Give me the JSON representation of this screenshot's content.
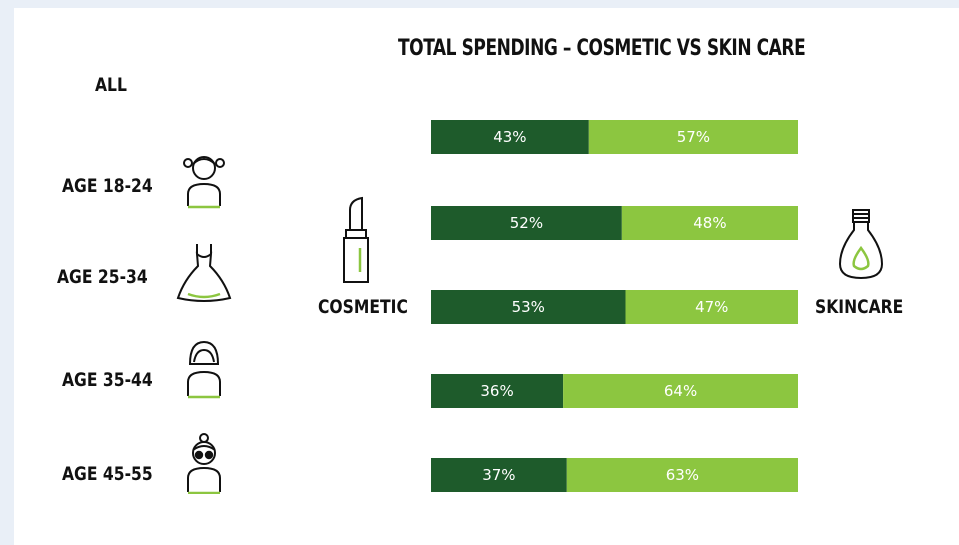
{
  "chart_data": {
    "type": "bar",
    "stacked": true,
    "orientation": "horizontal",
    "title": "TOTAL SPENDING – COSMETIC VS SKIN CARE",
    "categories": [
      "ALL",
      "AGE 18-24",
      "AGE 25-34",
      "AGE 35-44",
      "AGE 45-55"
    ],
    "series": [
      {
        "name": "COSMETIC",
        "color": "#1e5b2b",
        "values": [
          43,
          52,
          53,
          36,
          37
        ]
      },
      {
        "name": "SKINCARE",
        "color": "#8cc640",
        "values": [
          57,
          48,
          47,
          64,
          63
        ]
      }
    ],
    "value_suffix": "%",
    "xlim": [
      0,
      100
    ],
    "legend": {
      "placement": "sides",
      "left_icon": "lipstick-icon",
      "right_icon": "skincare-bottle-icon"
    }
  },
  "icons": [
    "girl-pigtails-icon",
    "dress-icon",
    "woman-icon",
    "old-woman-glasses-icon"
  ]
}
